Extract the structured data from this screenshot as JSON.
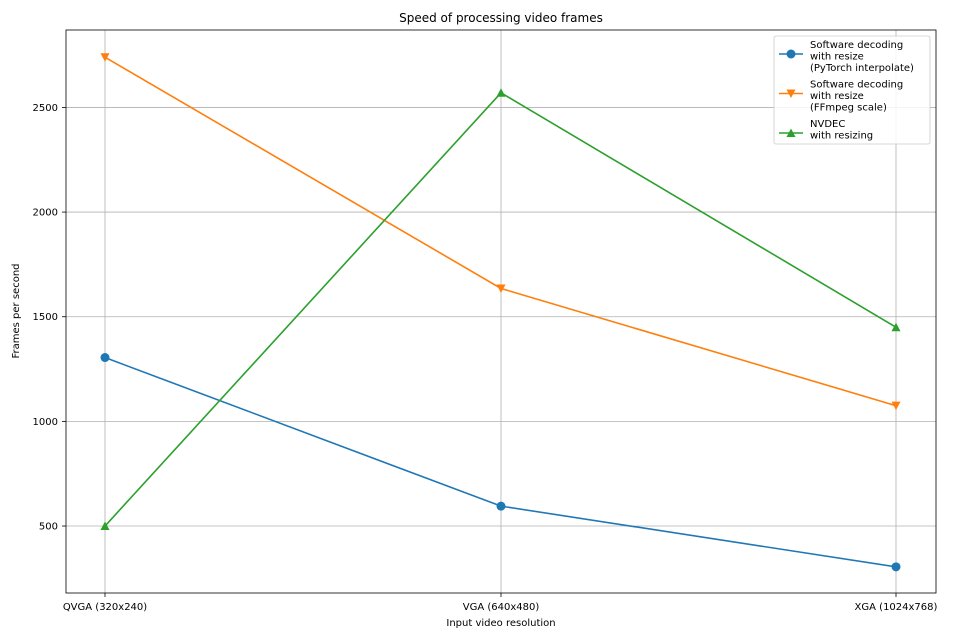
{
  "chart_data": {
    "type": "line",
    "title": "Speed of processing video frames",
    "xlabel": "Input video resolution",
    "ylabel": "Frames per second",
    "categories": [
      "QVGA (320x240)",
      "VGA (640x480)",
      "XGA (1024x768)"
    ],
    "ylim": [
      180,
      2870
    ],
    "yticks": [
      500,
      1000,
      1500,
      2000,
      2500
    ],
    "grid": true,
    "legend_position": "top-right",
    "series": [
      {
        "name": "Software decoding\nwith resize\n(PyTorch interpolate)",
        "values": [
          1305,
          595,
          305
        ],
        "color": "#1f77b4",
        "marker": "circle"
      },
      {
        "name": "Software decoding\nwith resize\n(FFmpeg scale)",
        "values": [
          2740,
          1635,
          1075
        ],
        "color": "#ff7f0e",
        "marker": "triangle-down"
      },
      {
        "name": "NVDEC\nwith resizing",
        "values": [
          500,
          2570,
          1450
        ],
        "color": "#2ca02c",
        "marker": "triangle-up"
      }
    ]
  }
}
